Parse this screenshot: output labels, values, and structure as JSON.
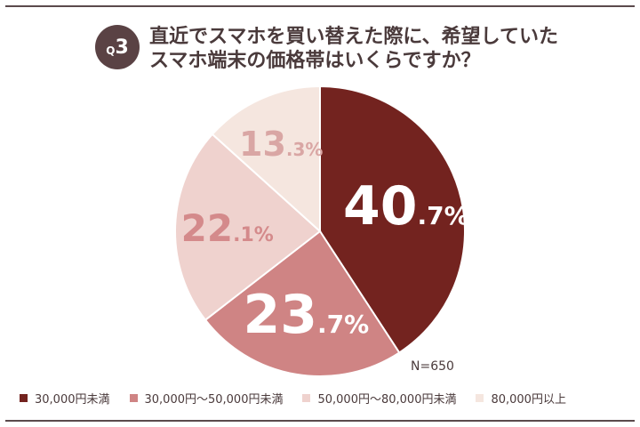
{
  "header": {
    "badge_q": "Q",
    "badge_number": "3",
    "title_line1": "直近でスマホを買い替えた際に、希望していた",
    "title_line2": "スマホ端末の価格帯はいくらですか？"
  },
  "chart_data": {
    "type": "pie",
    "title": "直近でスマホを買い替えた際に、希望していた スマホ端末の価格帯はいくらですか？",
    "categories": [
      "30,000円未満",
      "30,000円～50,000円未満",
      "50,000円～80,000円未満",
      "80,000円以上"
    ],
    "values": [
      40.7,
      23.7,
      22.1,
      13.3
    ],
    "labels": [
      {
        "int": "40",
        "dec": ".7%"
      },
      {
        "int": "23",
        "dec": ".7%"
      },
      {
        "int": "22",
        "dec": ".1%"
      },
      {
        "int": "13",
        "dec": ".3%"
      }
    ],
    "colors": [
      "#73231f",
      "#cf8484",
      "#efd2ce",
      "#f5e6df"
    ],
    "label_colors": [
      "#ffffff",
      "#ffffff",
      "#d48a8b",
      "#d9a6a4"
    ],
    "start_angle_deg": 0,
    "direction": "clockwise",
    "note": "N=650",
    "legend_position": "bottom"
  }
}
